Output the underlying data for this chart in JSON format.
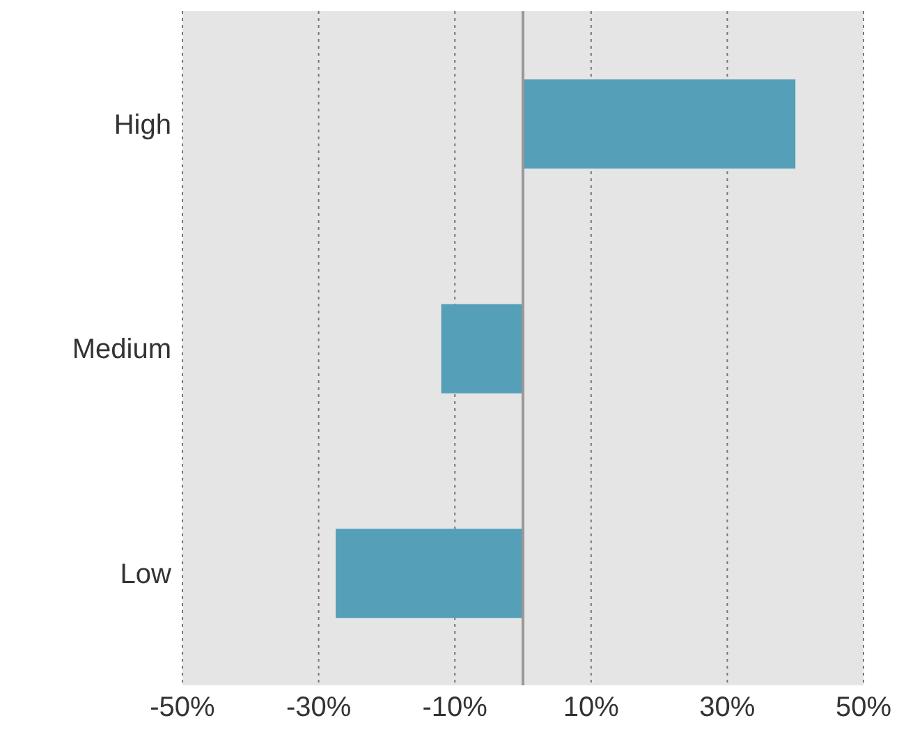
{
  "chart_data": {
    "type": "bar",
    "orientation": "horizontal",
    "categories": [
      "High",
      "Medium",
      "Low"
    ],
    "values": [
      40,
      -12,
      -27.5
    ],
    "color": "#559fb8",
    "xlim": [
      -50,
      50
    ],
    "xticks": [
      {
        "value": -50,
        "label": "-50%"
      },
      {
        "value": -30,
        "label": "-30%"
      },
      {
        "value": -10,
        "label": "-10%"
      },
      {
        "value": 10,
        "label": "10%"
      },
      {
        "value": 30,
        "label": "30%"
      },
      {
        "value": 50,
        "label": "50%"
      }
    ],
    "grid": "x"
  }
}
